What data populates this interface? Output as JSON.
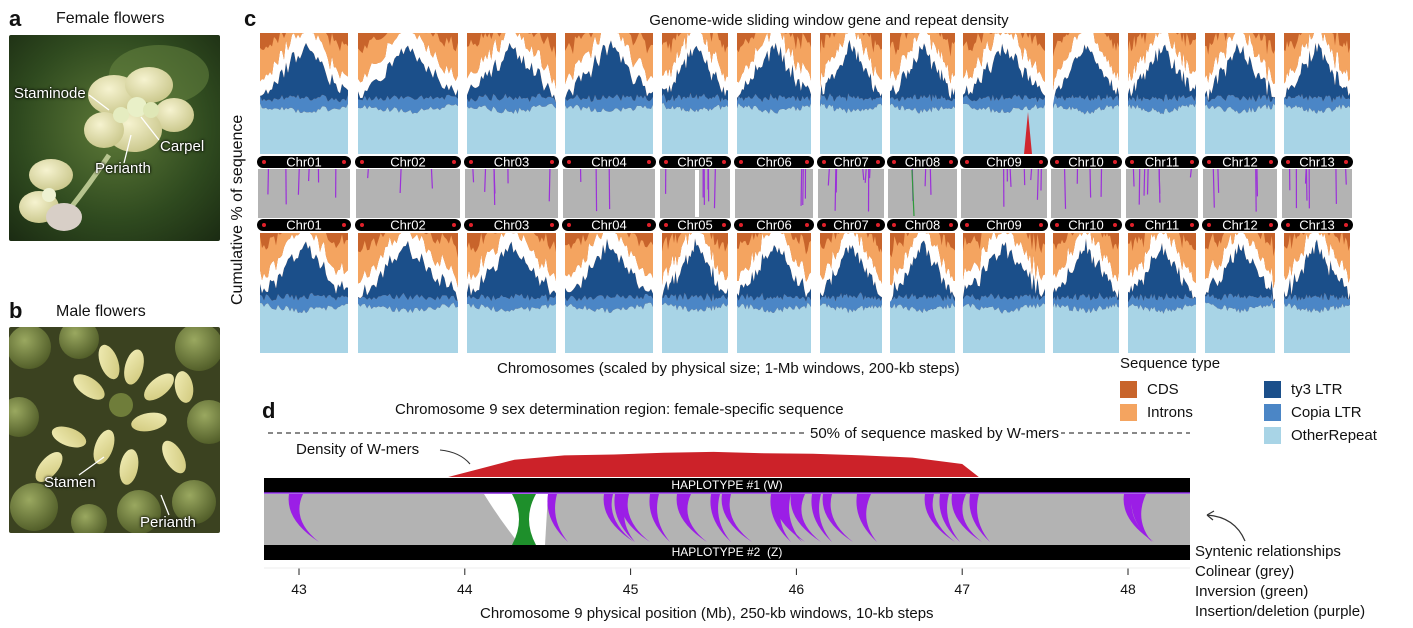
{
  "panels": {
    "a": {
      "letter": "a",
      "title": "Female flowers",
      "labels": {
        "staminode": "Staminode",
        "carpel": "Carpel",
        "perianth": "Perianth"
      }
    },
    "b": {
      "letter": "b",
      "title": "Male flowers",
      "labels": {
        "stamen": "Stamen",
        "perianth": "Perianth"
      }
    },
    "c": {
      "letter": "c",
      "title": "Genome-wide sliding window gene and repeat density",
      "ylabel": "Cumulative % of sequence",
      "xlabel": "Chromosomes (scaled by physical size; 1-Mb windows, 200-kb steps)",
      "chromosomes": [
        "Chr01",
        "Chr02",
        "Chr03",
        "Chr04",
        "Chr05",
        "Chr06",
        "Chr07",
        "Chr08",
        "Chr09",
        "Chr10",
        "Chr11",
        "Chr12",
        "Chr13"
      ],
      "legend": {
        "title": "Sequence type",
        "items": [
          {
            "label": "CDS",
            "color": "#c8642b"
          },
          {
            "label": "Introns",
            "color": "#f4a460"
          },
          {
            "label": "ty3 LTR",
            "color": "#1b4f8a"
          },
          {
            "label": "Copia LTR",
            "color": "#4b86c6"
          },
          {
            "label": "OtherRepeat",
            "color": "#a8d4e6"
          }
        ]
      }
    },
    "d": {
      "letter": "d",
      "title": "Chromosome 9 sex determination region: female-specific sequence",
      "threshold_label": "50% of sequence masked by W-mers",
      "density_label": "Density of W-mers",
      "haplotype1": "HAPLOTYPE #1 (W)",
      "haplotype2": "HAPLOTYPE #2  (Z)",
      "xlabel": "Chromosome 9 physical position (Mb), 250-kb windows, 10-kb steps",
      "synteny_legend": {
        "title": "Syntenic relationships",
        "items": [
          "Colinear (grey)",
          "Inversion (green)",
          "Insertion/deletion (purple)"
        ]
      }
    }
  },
  "chart_data": [
    {
      "type": "area",
      "title": "Genome-wide sliding window gene and repeat density",
      "xlabel": "Chromosomes (scaled by physical size; 1-Mb windows, 200-kb steps)",
      "ylabel": "Cumulative % of sequence",
      "ylim": [
        0,
        100
      ],
      "categories": [
        "Chr01",
        "Chr02",
        "Chr03",
        "Chr04",
        "Chr05",
        "Chr06",
        "Chr07",
        "Chr08",
        "Chr09",
        "Chr10",
        "Chr11",
        "Chr12",
        "Chr13"
      ],
      "series": [
        {
          "name": "OtherRepeat",
          "values": [
            35,
            35,
            35,
            35,
            35,
            35,
            35,
            35,
            35,
            35,
            35,
            35,
            35
          ]
        },
        {
          "name": "Copia LTR",
          "values": [
            10,
            10,
            10,
            10,
            10,
            10,
            10,
            10,
            10,
            10,
            10,
            10,
            10
          ]
        },
        {
          "name": "ty3 LTR",
          "values": [
            25,
            25,
            25,
            25,
            25,
            25,
            25,
            25,
            25,
            25,
            25,
            25,
            25
          ]
        },
        {
          "name": "Introns",
          "values": [
            18,
            18,
            18,
            18,
            18,
            18,
            18,
            18,
            18,
            18,
            18,
            18,
            18
          ]
        },
        {
          "name": "CDS",
          "values": [
            5,
            5,
            5,
            5,
            5,
            5,
            5,
            5,
            5,
            5,
            5,
            5,
            5
          ]
        }
      ],
      "legend": "right"
    },
    {
      "type": "area",
      "title": "Chromosome 9 sex determination region: female-specific sequence",
      "xlabel": "Chromosome 9 physical position (Mb), 250-kb windows, 10-kb steps",
      "xlim": [
        42.8,
        48.4
      ],
      "xticks": [
        43,
        44,
        45,
        46,
        47,
        48
      ],
      "x": [
        43.9,
        44.1,
        44.3,
        44.6,
        44.9,
        45.2,
        45.5,
        45.8,
        46.1,
        46.4,
        46.7,
        47.0,
        47.1
      ],
      "values": [
        0,
        20,
        40,
        50,
        52,
        56,
        58,
        55,
        54,
        50,
        45,
        30,
        0
      ],
      "threshold": 50
    }
  ]
}
